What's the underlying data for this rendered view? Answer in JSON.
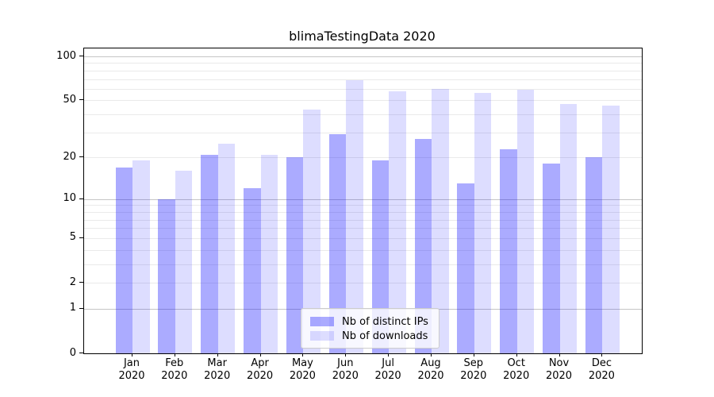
{
  "chart_data": {
    "type": "bar",
    "title": "blimaTestingData 2020",
    "xlabel": "",
    "ylabel": "",
    "categories": [
      "Jan 2020",
      "Feb 2020",
      "Mar 2020",
      "Apr 2020",
      "May 2020",
      "Jun 2020",
      "Jul 2020",
      "Aug 2020",
      "Sep 2020",
      "Oct 2020",
      "Nov 2020",
      "Dec 2020"
    ],
    "x_tick_month_labels": [
      "Jan",
      "Feb",
      "Mar",
      "Apr",
      "May",
      "Jun",
      "Jul",
      "Aug",
      "Sep",
      "Oct",
      "Nov",
      "Dec"
    ],
    "x_tick_year_label": "2020",
    "series": [
      {
        "name": "Nb of distinct IPs",
        "color": "rgba(0,0,255,0.33)",
        "values": [
          17,
          10,
          21,
          12,
          20,
          29,
          19,
          27,
          13,
          23,
          18,
          20
        ]
      },
      {
        "name": "Nb of downloads",
        "color": "rgba(0,0,255,0.135)",
        "values": [
          19,
          16,
          25,
          21,
          43,
          69,
          58,
          60,
          56,
          59,
          47,
          46
        ]
      }
    ],
    "yscale": "log1p",
    "ylim": [
      0,
      113
    ],
    "y_ticks": [
      0,
      1,
      2,
      5,
      10,
      20,
      50,
      100
    ],
    "y_major_gridline_values": [
      1,
      10,
      100
    ],
    "y_minor_gridline_values": [
      3,
      4,
      6,
      7,
      8,
      9,
      30,
      40,
      60,
      70,
      80,
      90
    ],
    "grid": true,
    "legend_position": "lower center",
    "colors": {
      "bar_distinct_ips": "rgba(0,0,255,0.33)",
      "bar_downloads": "rgba(0,0,255,0.135)",
      "grid_minor": "#eaeaea",
      "grid_major": "#c6c6c6",
      "spine": "#000000",
      "text": "#000000",
      "legend_border": "#cccccc",
      "legend_bg": "rgba(255,255,255,0.8)"
    }
  }
}
